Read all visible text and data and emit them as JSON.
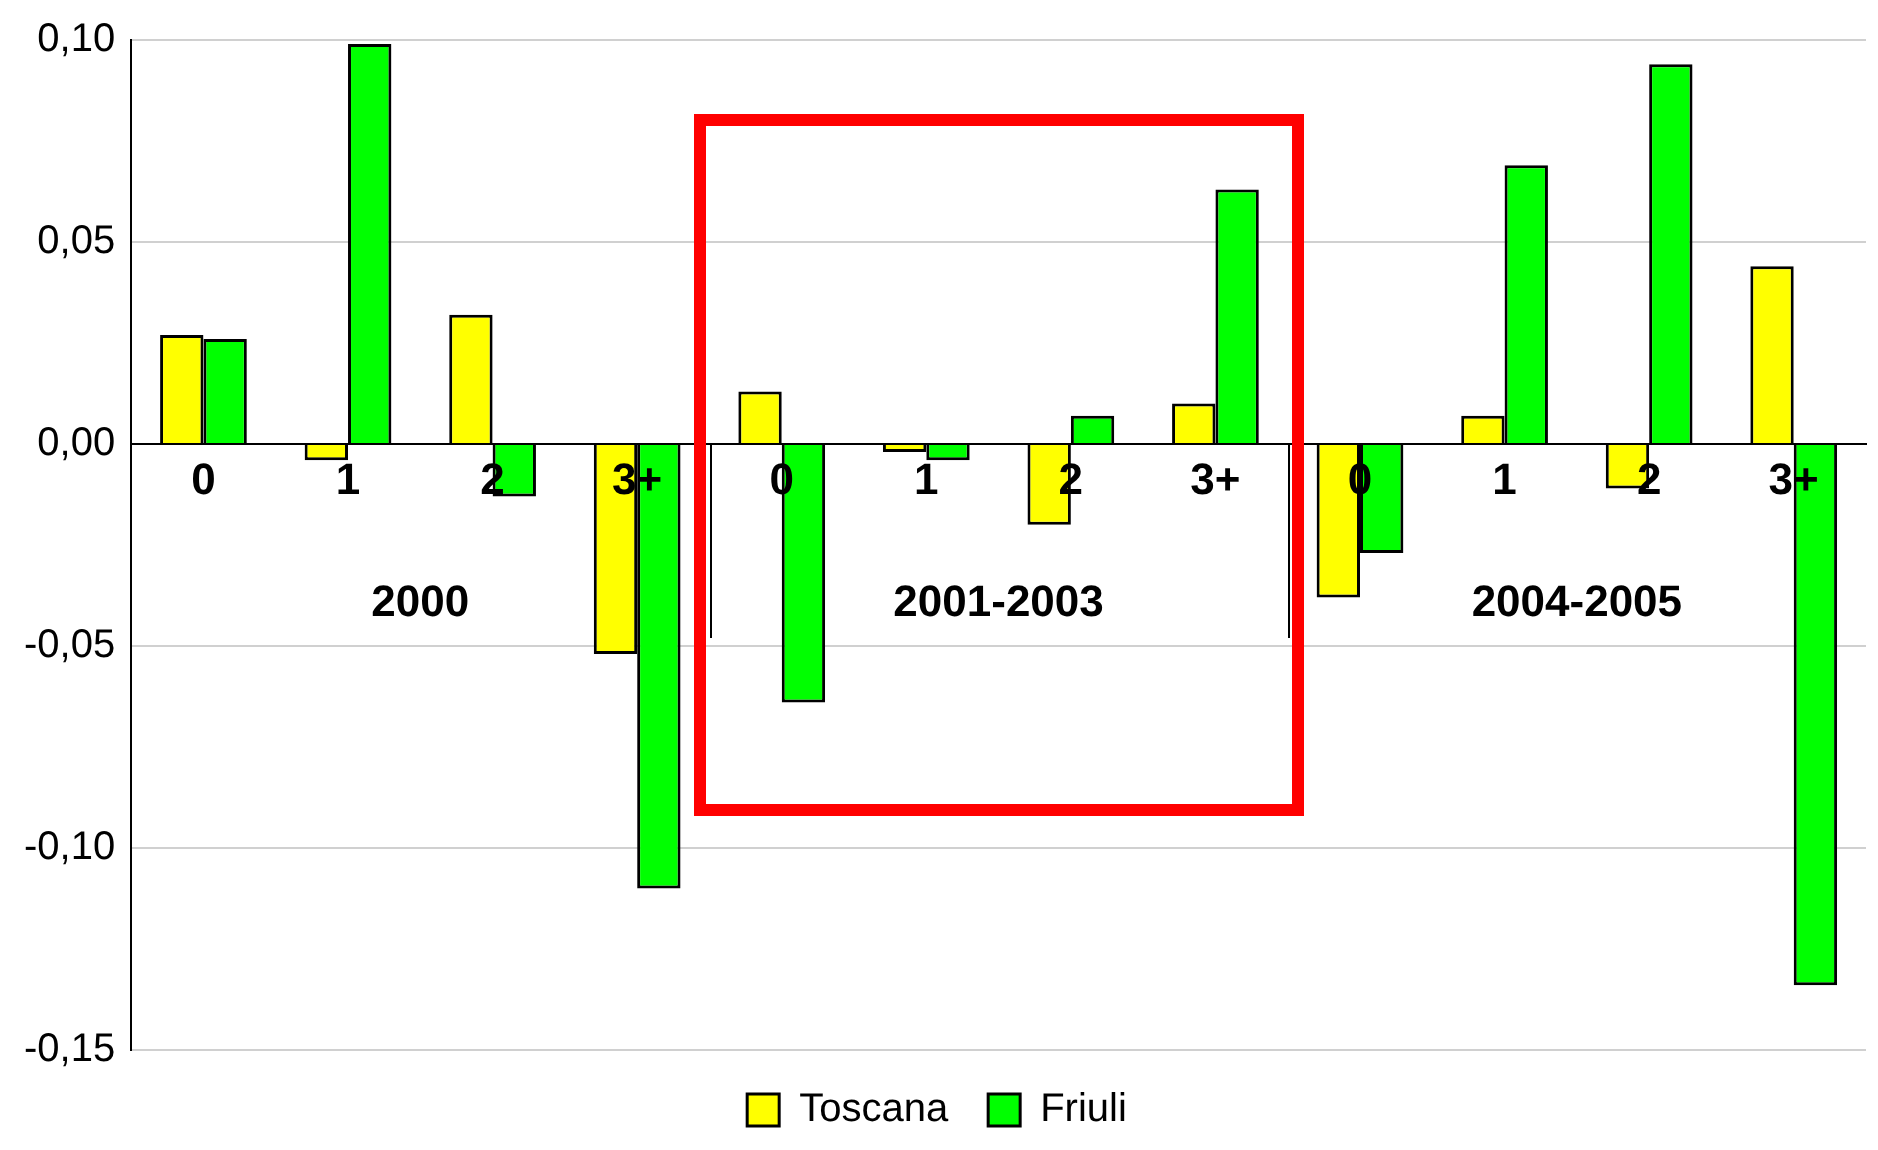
{
  "chart_data": {
    "type": "bar",
    "categories": [
      "0",
      "1",
      "2",
      "3+",
      "0",
      "1",
      "2",
      "3+",
      "0",
      "1",
      "2",
      "3+"
    ],
    "series": [
      {
        "name": "Toscana",
        "color": "#ffff00",
        "values": [
          0.027,
          -0.004,
          0.032,
          -0.052,
          0.013,
          -0.002,
          -0.02,
          0.01,
          -0.038,
          0.007,
          -0.011,
          0.044
        ]
      },
      {
        "name": "Friuli",
        "color": "#00ff00",
        "values": [
          0.026,
          0.099,
          -0.013,
          -0.11,
          -0.064,
          -0.004,
          0.007,
          0.063,
          -0.027,
          0.069,
          0.094,
          -0.134
        ]
      }
    ],
    "ylim": [
      -0.15,
      0.1
    ],
    "yticks": [
      {
        "value": -0.15,
        "label": "-0,15"
      },
      {
        "value": -0.1,
        "label": "-0,10"
      },
      {
        "value": -0.05,
        "label": "-0,05"
      },
      {
        "value": 0,
        "label": "0,00"
      },
      {
        "value": 0.05,
        "label": "0,05"
      },
      {
        "value": 0.1,
        "label": "0,10"
      }
    ],
    "annotations": [
      "2000",
      "2001-2003",
      "2004-2005"
    ],
    "grid": "y",
    "legend": "bottom"
  }
}
